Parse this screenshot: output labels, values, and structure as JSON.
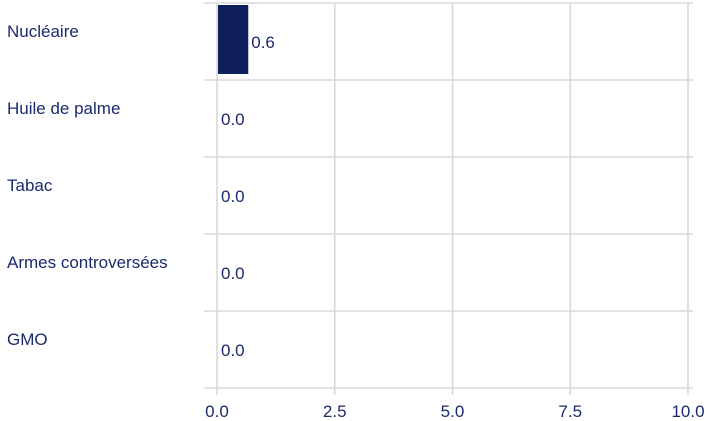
{
  "chart_data": {
    "type": "bar",
    "orientation": "horizontal",
    "categories": [
      "Nucléaire",
      "Huile de palme",
      "Tabac",
      "Armes controversées",
      "GMO"
    ],
    "values": [
      0.6,
      0.0,
      0.0,
      0.0,
      0.0
    ],
    "value_labels": [
      "0.6",
      "0.0",
      "0.0",
      "0.0",
      "0.0"
    ],
    "xlim": [
      0,
      10
    ],
    "xticks": [
      0,
      2.5,
      5,
      7.5,
      10
    ],
    "xtick_labels": [
      "0.0",
      "2.5",
      "5.0",
      "7.5",
      "10.0"
    ],
    "title": "",
    "xlabel": "",
    "ylabel": "",
    "grid": true,
    "colors": {
      "bar": "#0e1f5b",
      "text": "#1a2a6c",
      "grid": "#d9d9d9"
    }
  }
}
